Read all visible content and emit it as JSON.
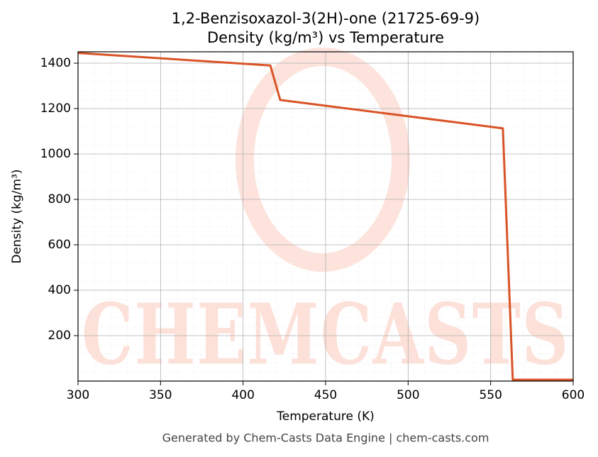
{
  "chart_data": {
    "type": "line",
    "title": "1,2-Benzisoxazol-3(2H)-one (21725-69-9)",
    "subtitle": "Density (kg/m³) vs Temperature",
    "x_label": "Temperature (K)",
    "y_label": "Density (kg/m³)",
    "footer": "Generated by Chem-Casts Data Engine | chem-casts.com",
    "watermark": "CHEMCASTS",
    "x": [
      300,
      416.5,
      422.5,
      557.4,
      563.4,
      600
    ],
    "series": [
      {
        "name": "Density",
        "color": "#d95326",
        "values": [
          1445,
          1390,
          1238,
          1113,
          6,
          6
        ]
      }
    ],
    "xlim": [
      300,
      600
    ],
    "xticks": [
      300,
      350,
      400,
      450,
      500,
      550,
      600
    ],
    "ylim": [
      0,
      1450
    ],
    "yticks": [
      200,
      400,
      600,
      800,
      1000,
      1200,
      1400
    ],
    "grid": true,
    "minor_grid": true
  }
}
